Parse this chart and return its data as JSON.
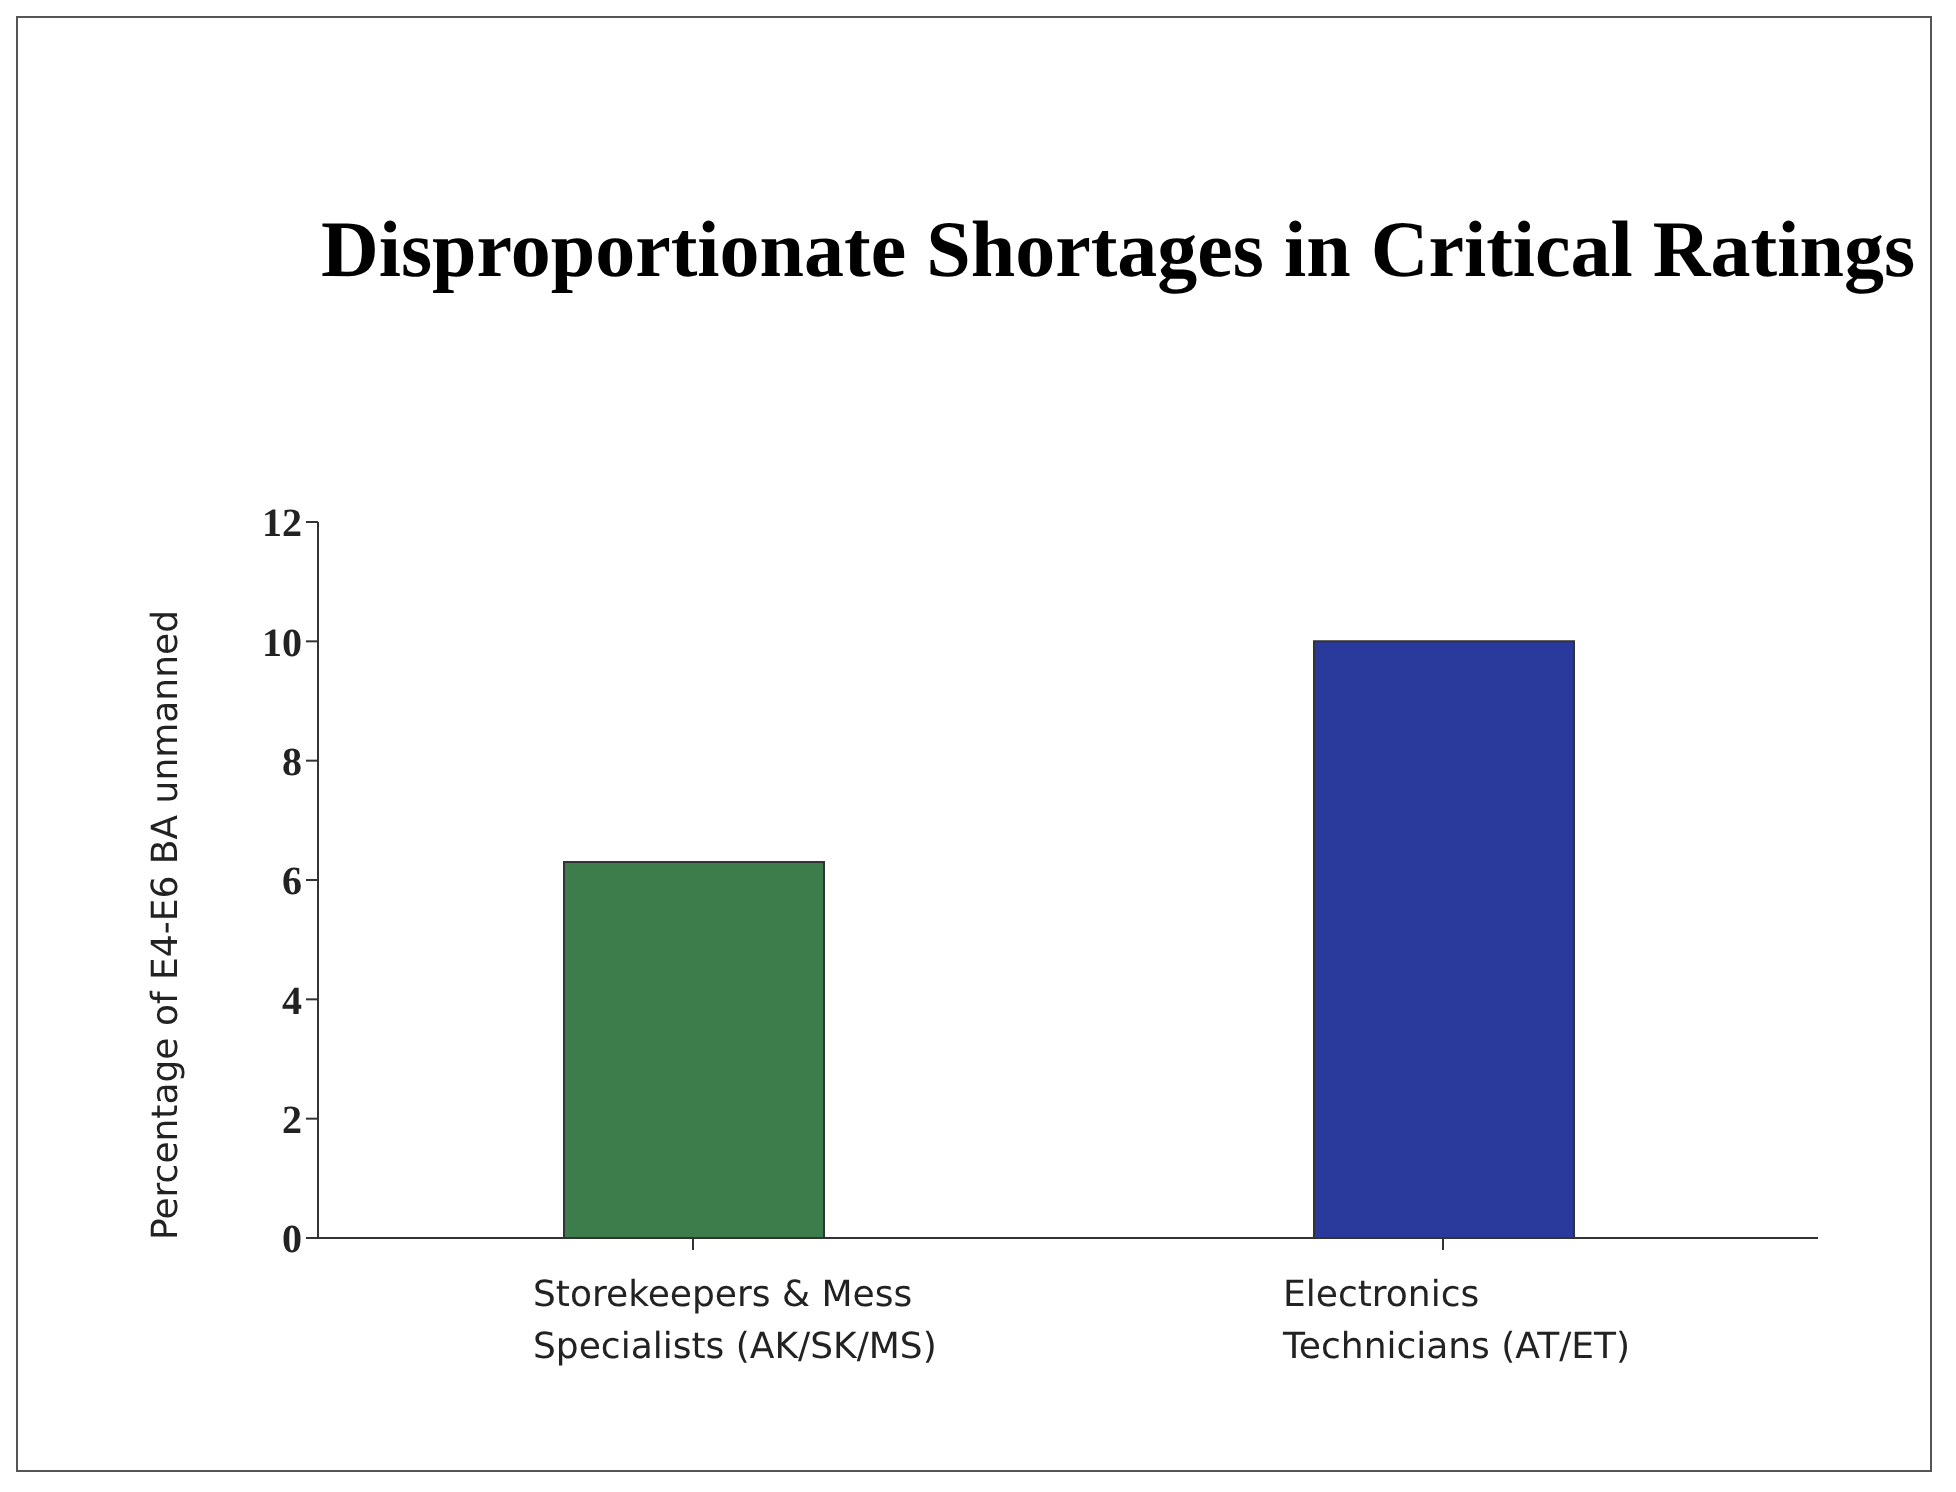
{
  "chart_data": {
    "type": "bar",
    "title": "Disproportionate Shortages in Critical Ratings",
    "ylabel": "Percentage of E4-E6 BA unmanned",
    "categories": [
      "Storekeepers & Mess Specialists (AK/SK/MS)",
      "Electronics Technicians (AT/ET)"
    ],
    "values": [
      6.3,
      10
    ],
    "colors": [
      "#3d7d4b",
      "#2a3a9c"
    ],
    "ylim": [
      0,
      12
    ],
    "yticks": [
      0,
      2,
      4,
      6,
      8,
      10,
      12
    ],
    "grid": false,
    "legend": false
  }
}
